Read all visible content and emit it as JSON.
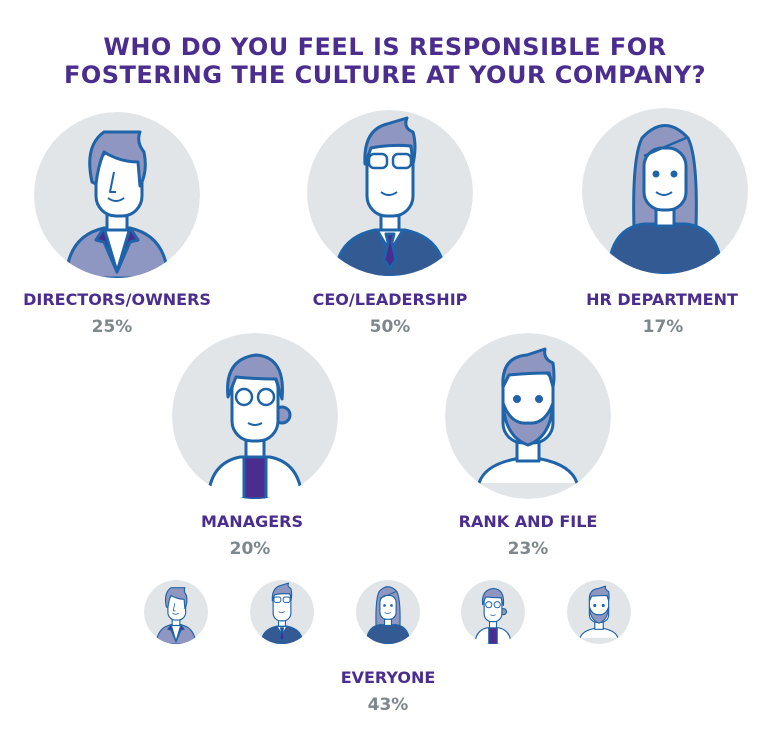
{
  "title": {
    "line1": "WHO DO YOU FEEL IS RESPONSIBLE FOR",
    "line2": "FOSTERING THE CULTURE AT YOUR COMPANY?"
  },
  "colors": {
    "title": "#4b2d8f",
    "label": "#4b2d8f",
    "percent": "#7d878c",
    "circle": "#e2e5e8",
    "outline": "#1f63a8",
    "hair": "#8f96c0",
    "accent": "#4b2d8f"
  },
  "chart_data": {
    "type": "pictogram",
    "title": "WHO DO YOU FEEL IS RESPONSIBLE FOR FOSTERING THE CULTURE AT YOUR COMPANY?",
    "categories": [
      "DIRECTORS/OWNERS",
      "CEO/LEADERSHIP",
      "HR DEPARTMENT",
      "MANAGERS",
      "RANK AND FILE",
      "EVERYONE"
    ],
    "values": [
      25,
      50,
      17,
      20,
      23,
      43
    ],
    "labels": [
      "25%",
      "50%",
      "17%",
      "20%",
      "23%",
      "43%"
    ],
    "icons": [
      "director-avatar-icon",
      "ceo-avatar-icon",
      "hr-avatar-icon",
      "manager-avatar-icon",
      "rank-and-file-avatar-icon",
      "everyone-avatars-icon"
    ]
  }
}
